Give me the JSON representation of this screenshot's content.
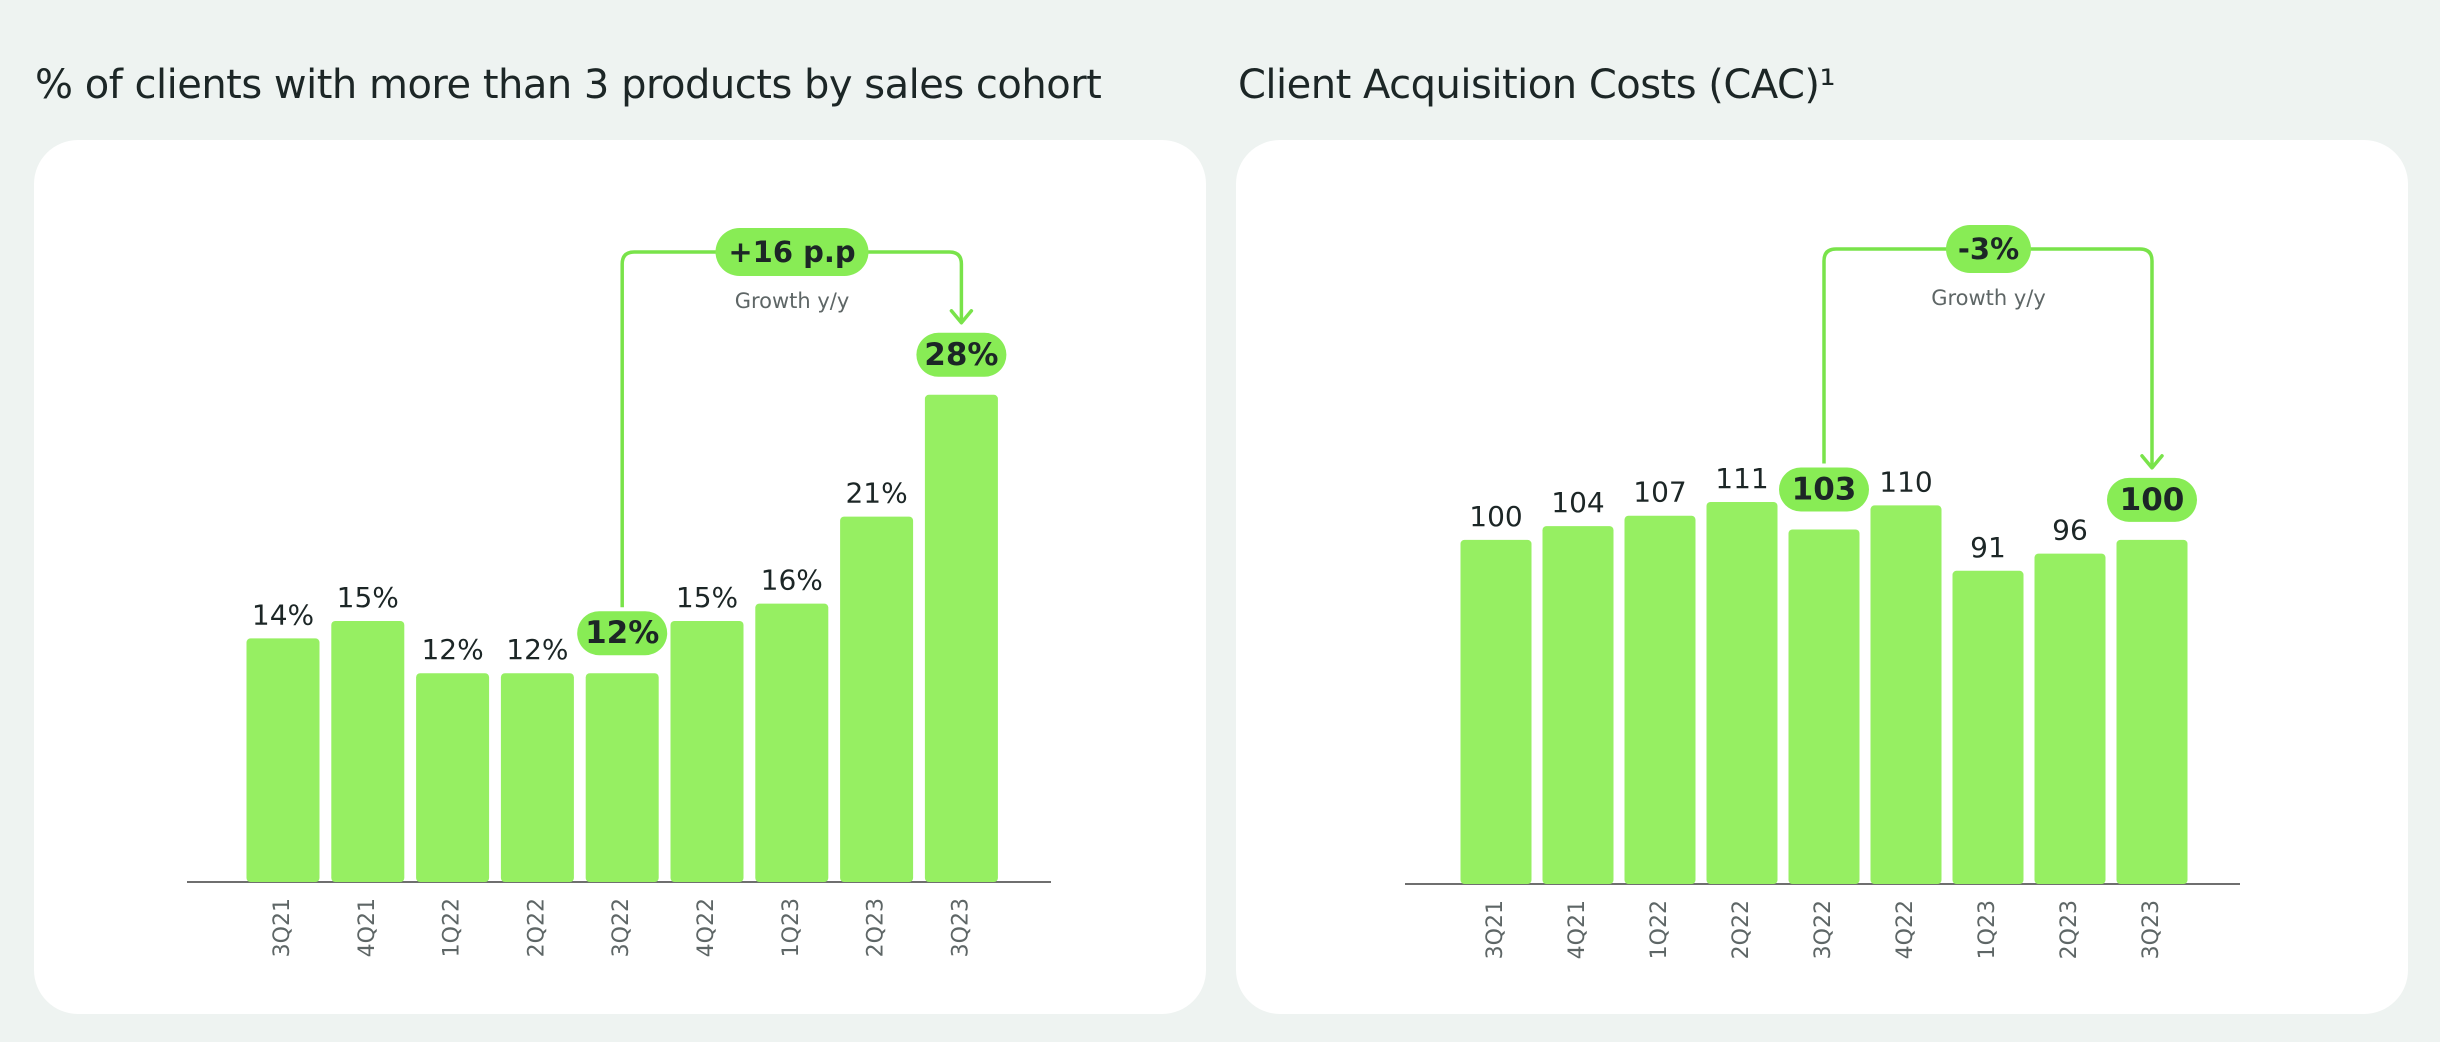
{
  "colors": {
    "bar": "#96ef62",
    "accent": "#79e34a",
    "pill": "#88ec55",
    "axis": "#6f6f6f",
    "text": "#1c2626",
    "tick_text": "#5e6666"
  },
  "chart_data": [
    {
      "type": "bar",
      "title": "% of clients with more than 3 products by sales cohort",
      "categories": [
        "3Q21",
        "4Q21",
        "1Q22",
        "2Q22",
        "3Q22",
        "4Q22",
        "1Q23",
        "2Q23",
        "3Q23"
      ],
      "values": [
        14,
        15,
        12,
        12,
        12,
        15,
        16,
        21,
        28
      ],
      "value_labels": [
        "14%",
        "15%",
        "12%",
        "12%",
        "12%",
        "15%",
        "16%",
        "21%",
        "28%"
      ],
      "highlighted_labels": [
        4,
        8
      ],
      "ylim": [
        0,
        30
      ],
      "grid": false,
      "annotation": {
        "from_index": 4,
        "to_index": 8,
        "label": "+16 p.p",
        "sublabel": "Growth y/y"
      }
    },
    {
      "type": "bar",
      "title": "Client Acquisition Costs (CAC)¹",
      "categories": [
        "3Q21",
        "4Q21",
        "1Q22",
        "2Q22",
        "3Q22",
        "4Q22",
        "1Q23",
        "2Q23",
        "3Q23"
      ],
      "values": [
        100,
        104,
        107,
        111,
        103,
        110,
        91,
        96,
        100
      ],
      "value_labels": [
        "100",
        "104",
        "107",
        "111",
        "103",
        "110",
        "91",
        "96",
        "100"
      ],
      "highlighted_labels": [
        4,
        8
      ],
      "ylim": [
        0,
        120
      ],
      "grid": false,
      "annotation": {
        "from_index": 4,
        "to_index": 8,
        "label": "-3%",
        "sublabel": "Growth y/y"
      }
    }
  ]
}
